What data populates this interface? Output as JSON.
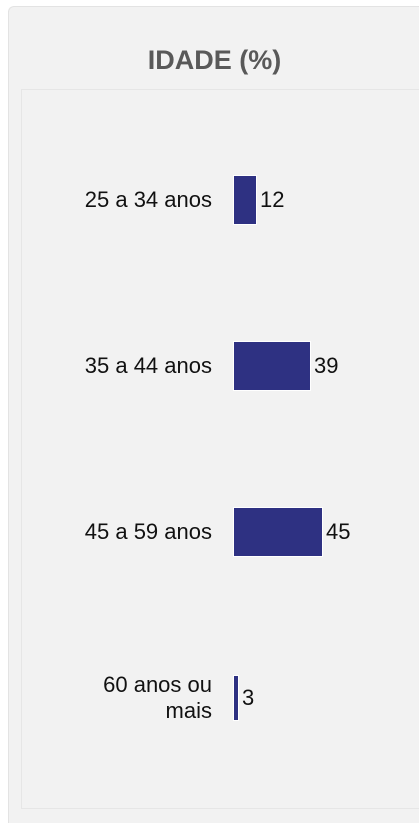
{
  "chart_data": {
    "type": "bar",
    "orientation": "horizontal",
    "title": "IDADE (%)",
    "categories": [
      "25 a 34 anos",
      "35 a 44 anos",
      "45 a 59 anos",
      "60 anos ou mais"
    ],
    "values": [
      12,
      39,
      45,
      3
    ],
    "color": "#2e3182"
  }
}
